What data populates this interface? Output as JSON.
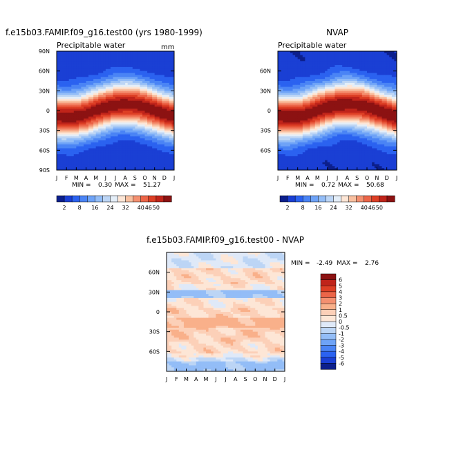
{
  "chart_data": [
    {
      "type": "heatmap",
      "title": "f.e15b03.FAMIP.f09_g16.test00 (yrs 1980-1999)",
      "subtitle": "Precipitable water",
      "units": "mm",
      "x_ticks": [
        "J",
        "F",
        "M",
        "A",
        "M",
        "J",
        "J",
        "A",
        "S",
        "O",
        "N",
        "D",
        "J"
      ],
      "y_ticks": [
        "90N",
        "60N",
        "30N",
        "0",
        "30S",
        "60S",
        "90S"
      ],
      "stats": {
        "min_label": "MIN =",
        "min": "0.30",
        "max_label": "MAX =",
        "max": "51.27"
      },
      "zmax": 51.27,
      "itcz_peak_month_index": 7,
      "shift": 0
    },
    {
      "type": "heatmap",
      "title": "NVAP",
      "subtitle": "Precipitable water",
      "units": "",
      "x_ticks": [
        "J",
        "F",
        "M",
        "A",
        "M",
        "J",
        "J",
        "A",
        "S",
        "O",
        "N",
        "D",
        "J"
      ],
      "y_ticks": [
        "",
        "60N",
        "30N",
        "0",
        "30S",
        "60S",
        ""
      ],
      "stats": {
        "min_label": "MIN =",
        "min": "0.72",
        "max_label": "MAX =",
        "max": "50.68"
      },
      "zmax": 50.68,
      "itcz_peak_month_index": 7,
      "shift": 1
    },
    {
      "type": "heatmap",
      "title": "f.e15b03.FAMIP.f09_g16.test00 - NVAP",
      "x_ticks": [
        "J",
        "F",
        "M",
        "A",
        "M",
        "J",
        "J",
        "A",
        "S",
        "O",
        "N",
        "D",
        "J"
      ],
      "y_ticks": [
        "",
        "60N",
        "30N",
        "0",
        "30S",
        "60S",
        ""
      ],
      "stats": {
        "min_label": "MIN =",
        "min": "-2.49",
        "max_label": "MAX =",
        "max": "2.76"
      },
      "bands": [
        {
          "lat_from": 90,
          "lat_to": 65,
          "diff": -0.3
        },
        {
          "lat_from": 65,
          "lat_to": 42,
          "diff": 0.5
        },
        {
          "lat_from": 42,
          "lat_to": 32,
          "diff": 0.2
        },
        {
          "lat_from": 32,
          "lat_to": 20,
          "diff": -1.2
        },
        {
          "lat_from": 20,
          "lat_to": 5,
          "diff": 0.3
        },
        {
          "lat_from": 5,
          "lat_to": -8,
          "diff": 0.6
        },
        {
          "lat_from": -8,
          "lat_to": -25,
          "diff": 1.3
        },
        {
          "lat_from": -25,
          "lat_to": -45,
          "diff": 0.7
        },
        {
          "lat_from": -45,
          "lat_to": -62,
          "diff": 0.5
        },
        {
          "lat_from": -62,
          "lat_to": -68,
          "diff": 0.1
        },
        {
          "lat_from": -68,
          "lat_to": -76,
          "diff": -0.5
        },
        {
          "lat_from": -76,
          "lat_to": -90,
          "diff": -1.2
        }
      ]
    }
  ],
  "colorbar_top": {
    "labels": [
      "2",
      "8",
      "16",
      "24",
      "32",
      "40",
      "46",
      "50"
    ],
    "colors": [
      "#0c1f8c",
      "#1a3fd4",
      "#2b62f0",
      "#4a84f5",
      "#6ea3f7",
      "#93bdf7",
      "#bcd5f5",
      "#e4eef8",
      "#fde6d6",
      "#f9c0a0",
      "#f49070",
      "#ec6548",
      "#dd3f25",
      "#c0241a",
      "#8c1212"
    ]
  },
  "colorbar_diff": {
    "labels": [
      "6",
      "5",
      "4",
      "3",
      "2",
      "1",
      "0.5",
      "0",
      "-0.5",
      "-1",
      "-2",
      "-3",
      "-4",
      "-5",
      "-6"
    ],
    "colors": [
      "#8c1212",
      "#c0241a",
      "#dd3f25",
      "#ec6548",
      "#f49070",
      "#f9b08a",
      "#fcd0b8",
      "#fde6d6",
      "#dfe9f8",
      "#bcd5f5",
      "#93bdf7",
      "#6ea3f7",
      "#4a84f5",
      "#2b62f0",
      "#1a3fd4",
      "#0c1f8c"
    ]
  }
}
